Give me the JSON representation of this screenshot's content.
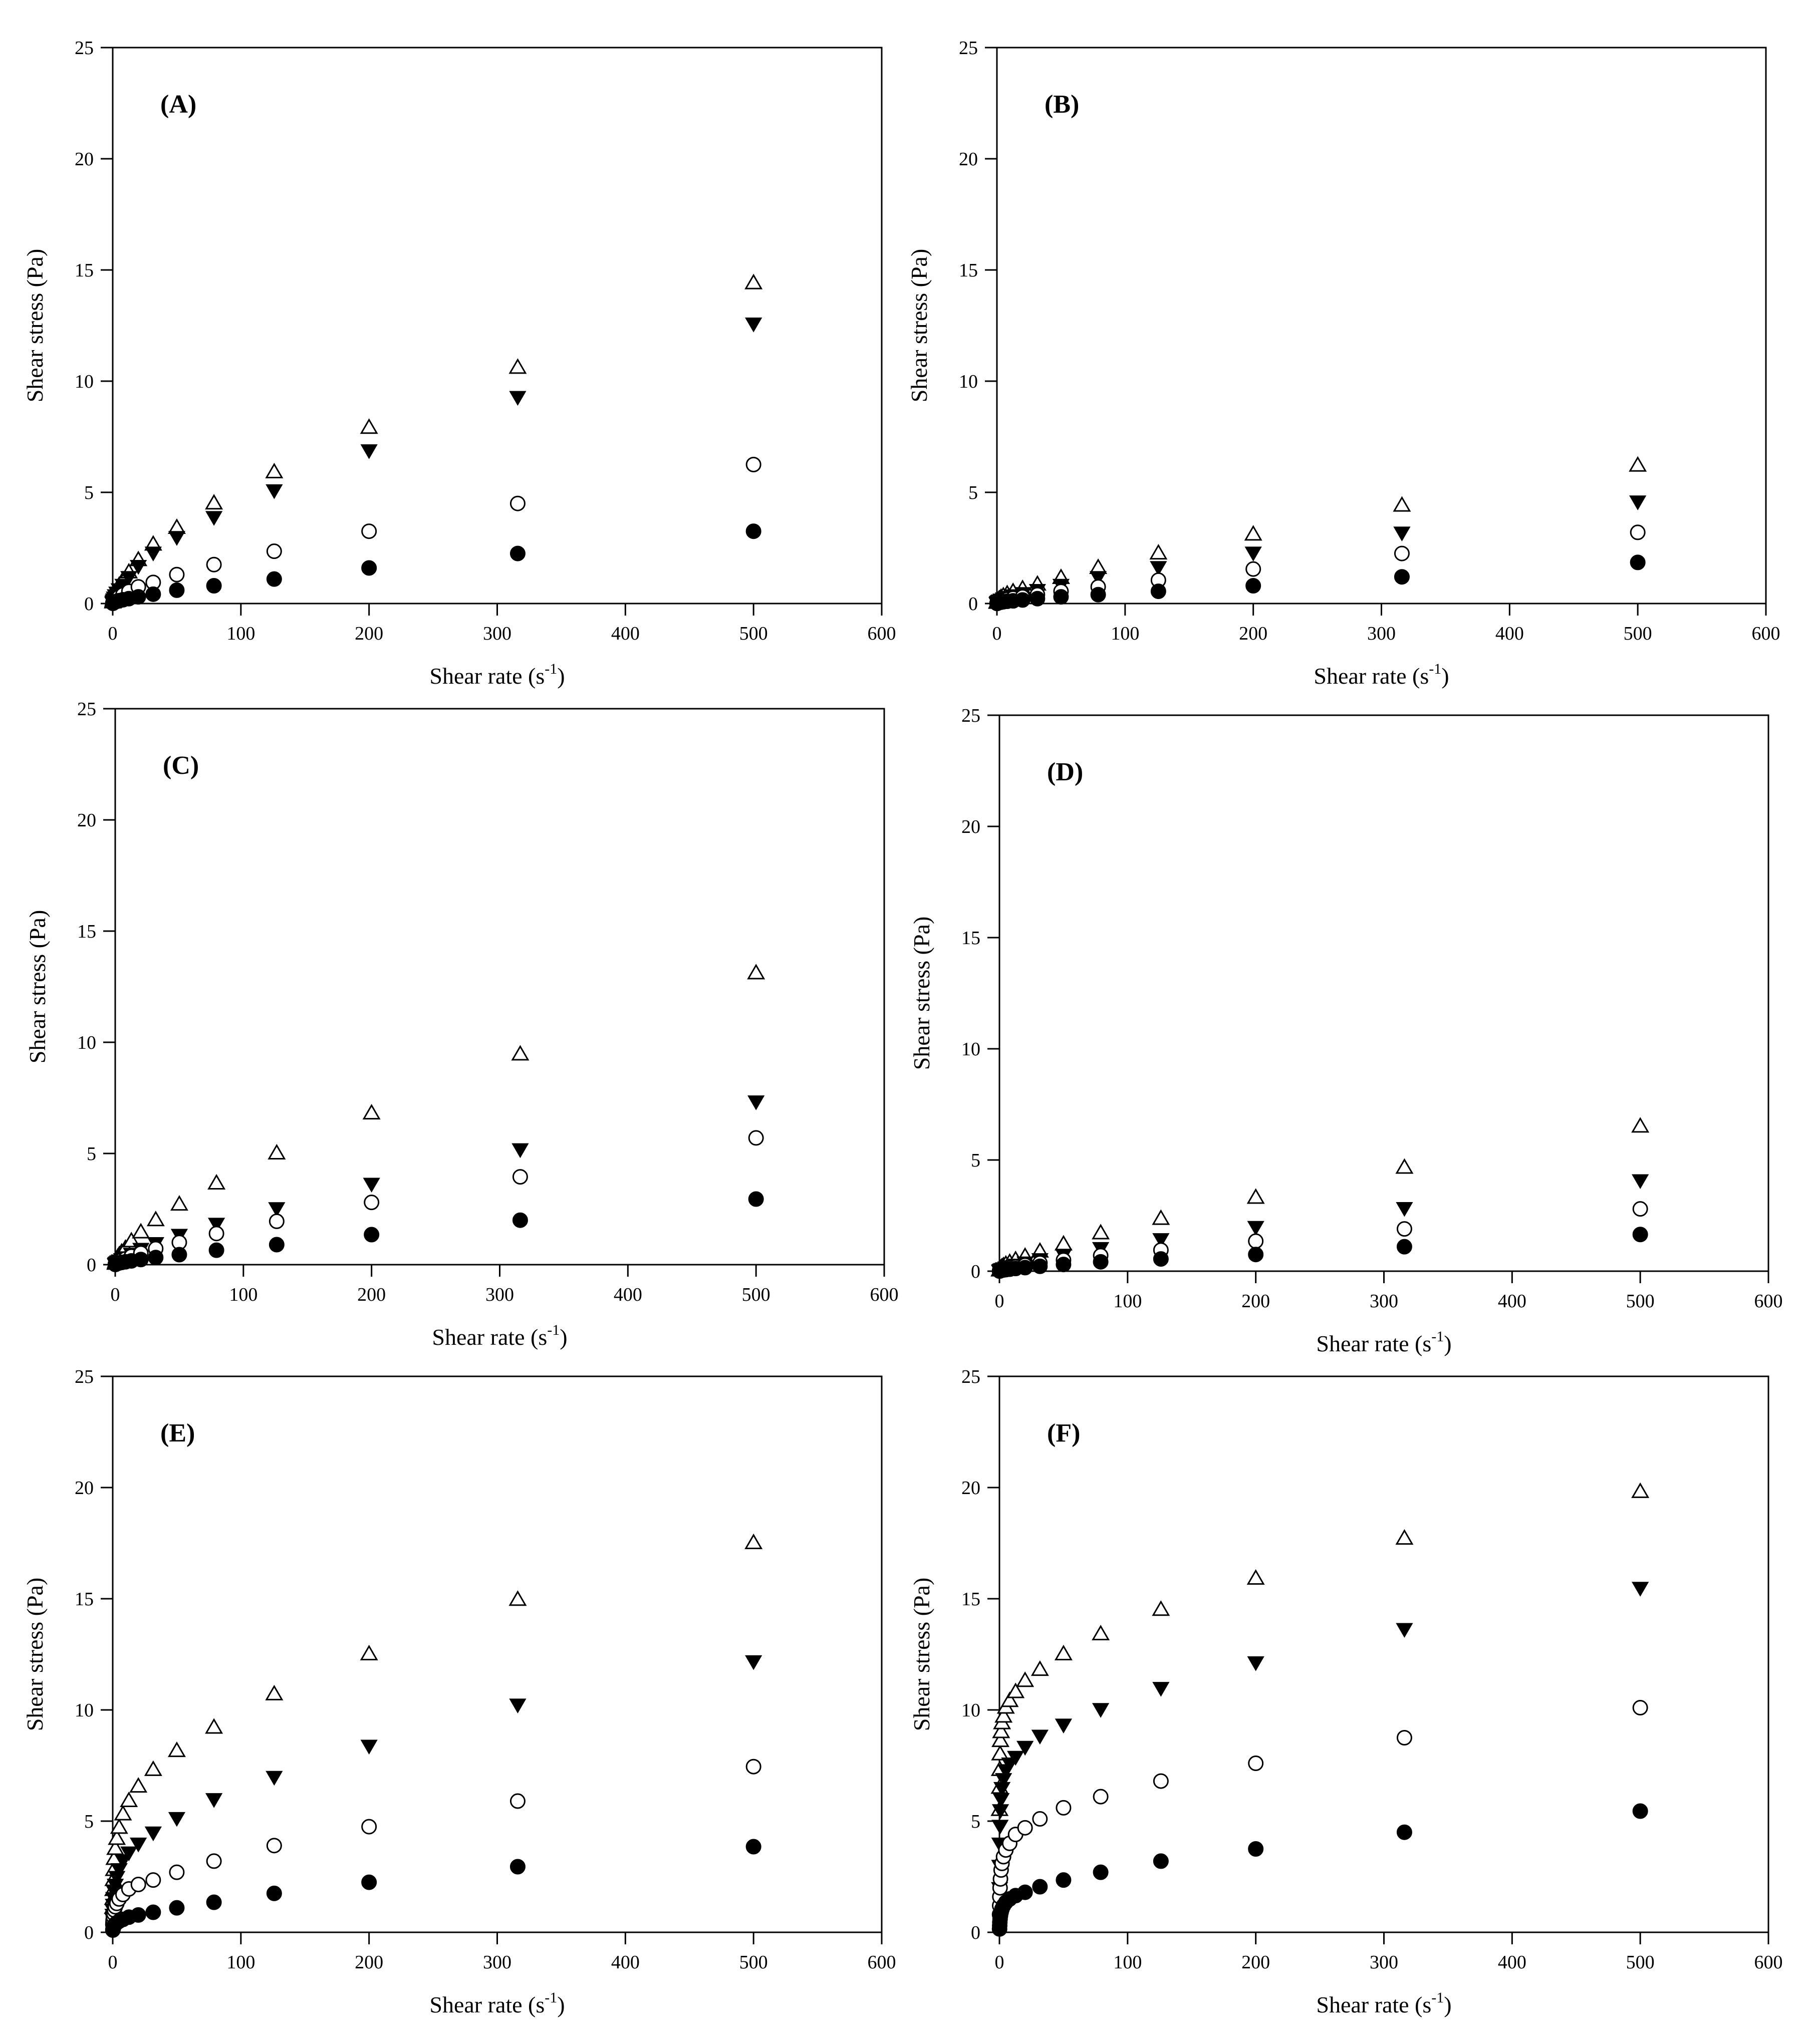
{
  "figure": {
    "name": "Shear stress versus shear rate flow curves, panels A-F"
  },
  "chart_data": [
    {
      "panel": "(A)",
      "type": "scatter",
      "xlabel": "Shear rate (s",
      "xlabel_sup": "-1",
      "xlabel_end": ")",
      "ylabel": "Shear stress (Pa)",
      "xlim": [
        0,
        600
      ],
      "ylim": [
        0,
        25
      ],
      "xticks": [
        0,
        100,
        200,
        300,
        400,
        500,
        600
      ],
      "yticks": [
        0,
        5,
        10,
        15,
        20,
        25
      ],
      "x": [
        0.1,
        0.2,
        0.3,
        0.5,
        0.8,
        1.3,
        2,
        3.2,
        5,
        8,
        12.6,
        20,
        31.6,
        50,
        79,
        126,
        200,
        316,
        500
      ],
      "series": [
        {
          "marker": "triangle-open",
          "values": [
            0.05,
            0.08,
            0.12,
            0.18,
            0.25,
            0.35,
            0.47,
            0.62,
            0.8,
            1.05,
            1.4,
            1.95,
            2.65,
            3.4,
            4.5,
            5.9,
            7.9,
            10.6,
            14.4
          ]
        },
        {
          "marker": "triangle-down-filled",
          "values": [
            0.04,
            0.07,
            0.1,
            0.15,
            0.2,
            0.28,
            0.38,
            0.5,
            0.65,
            0.85,
            1.2,
            1.7,
            2.3,
            3.0,
            3.9,
            5.1,
            6.9,
            9.3,
            12.6
          ]
        },
        {
          "marker": "circle-open",
          "values": [
            0.02,
            0.03,
            0.04,
            0.06,
            0.08,
            0.12,
            0.16,
            0.22,
            0.3,
            0.4,
            0.55,
            0.75,
            0.95,
            1.3,
            1.75,
            2.35,
            3.25,
            4.5,
            6.25
          ]
        },
        {
          "marker": "circle-filled",
          "values": [
            0.01,
            0.015,
            0.02,
            0.03,
            0.04,
            0.06,
            0.08,
            0.1,
            0.13,
            0.17,
            0.22,
            0.3,
            0.42,
            0.6,
            0.8,
            1.1,
            1.6,
            2.25,
            3.25
          ]
        }
      ]
    },
    {
      "panel": "(B)",
      "type": "scatter",
      "xlabel": "Shear rate (s",
      "xlabel_sup": "-1",
      "xlabel_end": ")",
      "ylabel": "Shear stress (Pa)",
      "xlim": [
        0,
        600
      ],
      "ylim": [
        0,
        25
      ],
      "xticks": [
        0,
        100,
        200,
        300,
        400,
        500,
        600
      ],
      "yticks": [
        0,
        5,
        10,
        15,
        20,
        25
      ],
      "x": [
        0.1,
        0.2,
        0.3,
        0.5,
        0.8,
        1.3,
        2,
        3.2,
        5,
        8,
        12.6,
        20,
        31.6,
        50,
        79,
        126,
        200,
        316,
        500
      ],
      "series": [
        {
          "marker": "triangle-open",
          "values": [
            0.03,
            0.05,
            0.07,
            0.09,
            0.12,
            0.16,
            0.2,
            0.26,
            0.33,
            0.42,
            0.52,
            0.65,
            0.85,
            1.15,
            1.6,
            2.25,
            3.1,
            4.4,
            6.2
          ]
        },
        {
          "marker": "triangle-down-filled",
          "values": [
            0.02,
            0.03,
            0.05,
            0.07,
            0.09,
            0.12,
            0.15,
            0.19,
            0.24,
            0.3,
            0.38,
            0.48,
            0.62,
            0.85,
            1.2,
            1.65,
            2.3,
            3.2,
            4.6
          ]
        },
        {
          "marker": "circle-open",
          "values": [
            0.01,
            0.02,
            0.03,
            0.04,
            0.05,
            0.07,
            0.09,
            0.12,
            0.15,
            0.19,
            0.24,
            0.3,
            0.4,
            0.55,
            0.75,
            1.05,
            1.55,
            2.25,
            3.2
          ]
        },
        {
          "marker": "circle-filled",
          "values": [
            0.005,
            0.01,
            0.015,
            0.02,
            0.03,
            0.04,
            0.05,
            0.06,
            0.08,
            0.1,
            0.12,
            0.16,
            0.22,
            0.3,
            0.4,
            0.55,
            0.8,
            1.2,
            1.85
          ]
        }
      ]
    },
    {
      "panel": "(C)",
      "type": "scatter",
      "xlabel": "Shear rate (s",
      "xlabel_sup": "-1",
      "xlabel_end": ")",
      "ylabel": "Shear stress (Pa)",
      "xlim": [
        0,
        600
      ],
      "ylim": [
        0,
        25
      ],
      "xticks": [
        0,
        100,
        200,
        300,
        400,
        500,
        600
      ],
      "yticks": [
        0,
        5,
        10,
        15,
        20,
        25
      ],
      "x": [
        0.1,
        0.2,
        0.3,
        0.5,
        0.8,
        1.3,
        2,
        3.2,
        5,
        8,
        12.6,
        20,
        31.6,
        50,
        79,
        126,
        200,
        316,
        500
      ],
      "series": [
        {
          "marker": "triangle-open",
          "values": [
            0.04,
            0.06,
            0.09,
            0.13,
            0.18,
            0.25,
            0.33,
            0.43,
            0.55,
            0.72,
            1.05,
            1.45,
            2.0,
            2.7,
            3.65,
            5.0,
            6.8,
            9.45,
            13.1
          ]
        },
        {
          "marker": "triangle-down-filled",
          "values": [
            0.02,
            0.03,
            0.05,
            0.07,
            0.09,
            0.12,
            0.16,
            0.2,
            0.26,
            0.34,
            0.5,
            0.72,
            0.98,
            1.35,
            1.85,
            2.55,
            3.65,
            5.2,
            7.35
          ]
        },
        {
          "marker": "circle-open",
          "values": [
            0.02,
            0.03,
            0.04,
            0.05,
            0.07,
            0.09,
            0.12,
            0.15,
            0.2,
            0.26,
            0.38,
            0.52,
            0.72,
            1.0,
            1.4,
            1.95,
            2.8,
            3.95,
            5.7
          ]
        },
        {
          "marker": "circle-filled",
          "values": [
            0.01,
            0.015,
            0.02,
            0.03,
            0.04,
            0.05,
            0.06,
            0.08,
            0.1,
            0.13,
            0.17,
            0.23,
            0.32,
            0.45,
            0.65,
            0.9,
            1.35,
            2.0,
            2.95
          ]
        }
      ]
    },
    {
      "panel": "(D)",
      "type": "scatter",
      "xlabel": "Shear rate (s",
      "xlabel_sup": "-1",
      "xlabel_end": ")",
      "ylabel": "Shear stress (Pa)",
      "xlim": [
        0,
        600
      ],
      "ylim": [
        0,
        25
      ],
      "xticks": [
        0,
        100,
        200,
        300,
        400,
        500,
        600
      ],
      "yticks": [
        0,
        5,
        10,
        15,
        20,
        25
      ],
      "x": [
        0.1,
        0.2,
        0.3,
        0.5,
        0.8,
        1.3,
        2,
        3.2,
        5,
        8,
        12.6,
        20,
        31.6,
        50,
        79,
        126,
        200,
        316,
        500
      ],
      "series": [
        {
          "marker": "triangle-open",
          "values": [
            0.03,
            0.04,
            0.06,
            0.08,
            0.11,
            0.14,
            0.18,
            0.23,
            0.3,
            0.38,
            0.5,
            0.65,
            0.88,
            1.2,
            1.7,
            2.35,
            3.3,
            4.65,
            6.5
          ]
        },
        {
          "marker": "triangle-down-filled",
          "values": [
            0.02,
            0.03,
            0.04,
            0.05,
            0.07,
            0.09,
            0.11,
            0.14,
            0.18,
            0.23,
            0.3,
            0.4,
            0.55,
            0.75,
            1.05,
            1.45,
            2.0,
            2.85,
            4.1
          ]
        },
        {
          "marker": "circle-open",
          "values": [
            0.01,
            0.02,
            0.03,
            0.04,
            0.05,
            0.06,
            0.08,
            0.1,
            0.12,
            0.16,
            0.2,
            0.27,
            0.37,
            0.5,
            0.7,
            0.95,
            1.35,
            1.9,
            2.8
          ]
        },
        {
          "marker": "circle-filled",
          "values": [
            0.005,
            0.01,
            0.015,
            0.02,
            0.03,
            0.035,
            0.045,
            0.055,
            0.07,
            0.09,
            0.12,
            0.16,
            0.22,
            0.3,
            0.42,
            0.55,
            0.75,
            1.1,
            1.65
          ]
        }
      ]
    },
    {
      "panel": "(E)",
      "type": "scatter",
      "xlabel": "Shear rate (s",
      "xlabel_sup": "-1",
      "xlabel_end": ")",
      "ylabel": "Shear stress (Pa)",
      "xlim": [
        0,
        600
      ],
      "ylim": [
        0,
        25
      ],
      "xticks": [
        0,
        100,
        200,
        300,
        400,
        500,
        600
      ],
      "yticks": [
        0,
        5,
        10,
        15,
        20,
        25
      ],
      "x": [
        0.1,
        0.2,
        0.3,
        0.5,
        0.8,
        1.3,
        2,
        3.2,
        5,
        8,
        12.6,
        20,
        31.6,
        50,
        79,
        126,
        200,
        316,
        500
      ],
      "series": [
        {
          "marker": "triangle-open",
          "values": [
            1.1,
            1.5,
            1.9,
            2.35,
            2.8,
            3.3,
            3.75,
            4.2,
            4.7,
            5.3,
            5.9,
            6.55,
            7.3,
            8.15,
            9.2,
            10.7,
            12.5,
            14.95,
            17.5
          ]
        },
        {
          "marker": "triangle-down-filled",
          "values": [
            0.6,
            0.8,
            1.0,
            1.25,
            1.55,
            1.85,
            2.15,
            2.5,
            2.85,
            3.25,
            3.6,
            4.0,
            4.5,
            5.15,
            6.0,
            7.0,
            8.4,
            10.25,
            12.2
          ]
        },
        {
          "marker": "circle-open",
          "values": [
            0.35,
            0.45,
            0.55,
            0.7,
            0.85,
            1.0,
            1.15,
            1.3,
            1.5,
            1.7,
            1.95,
            2.15,
            2.35,
            2.7,
            3.2,
            3.9,
            4.75,
            5.9,
            7.45
          ]
        },
        {
          "marker": "circle-filled",
          "values": [
            0.1,
            0.13,
            0.17,
            0.21,
            0.26,
            0.31,
            0.37,
            0.43,
            0.5,
            0.58,
            0.68,
            0.78,
            0.9,
            1.1,
            1.35,
            1.75,
            2.25,
            2.95,
            3.85
          ]
        }
      ]
    },
    {
      "panel": "(F)",
      "type": "scatter",
      "xlabel": "Shear rate (s",
      "xlabel_sup": "-1",
      "xlabel_end": ")",
      "ylabel": "Shear stress (Pa)",
      "xlim": [
        0,
        600
      ],
      "ylim": [
        0,
        25
      ],
      "xticks": [
        0,
        100,
        200,
        300,
        400,
        500,
        600
      ],
      "yticks": [
        0,
        5,
        10,
        15,
        20,
        25
      ],
      "x": [
        0.1,
        0.2,
        0.3,
        0.5,
        0.8,
        1.3,
        2,
        3.2,
        5,
        8,
        12.6,
        20,
        31.6,
        50,
        79,
        126,
        200,
        316,
        500
      ],
      "series": [
        {
          "marker": "triangle-open",
          "values": [
            5.5,
            6.5,
            7.3,
            8.0,
            8.6,
            9.0,
            9.4,
            9.7,
            10.1,
            10.4,
            10.8,
            11.3,
            11.8,
            12.5,
            13.4,
            14.5,
            15.9,
            17.7,
            19.8
          ]
        },
        {
          "marker": "triangle-down-filled",
          "values": [
            2.0,
            3.0,
            4.0,
            4.8,
            5.5,
            6.0,
            6.5,
            6.9,
            7.3,
            7.6,
            7.9,
            8.35,
            8.85,
            9.35,
            10.05,
            11.0,
            12.15,
            13.65,
            15.5
          ]
        },
        {
          "marker": "circle-open",
          "values": [
            0.8,
            1.2,
            1.6,
            2.0,
            2.4,
            2.8,
            3.1,
            3.4,
            3.7,
            4.0,
            4.4,
            4.7,
            5.1,
            5.6,
            6.1,
            6.8,
            7.6,
            8.75,
            10.1
          ]
        },
        {
          "marker": "circle-filled",
          "values": [
            0.15,
            0.3,
            0.45,
            0.6,
            0.75,
            0.9,
            1.05,
            1.2,
            1.35,
            1.5,
            1.65,
            1.8,
            2.05,
            2.35,
            2.7,
            3.2,
            3.75,
            4.5,
            5.45
          ]
        }
      ]
    }
  ]
}
